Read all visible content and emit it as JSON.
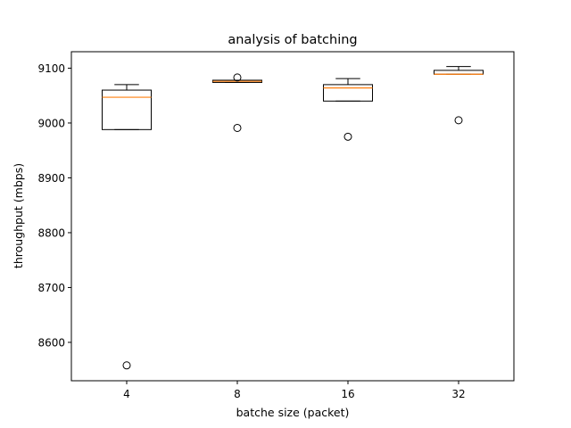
{
  "chart_data": {
    "type": "box",
    "title": "analysis of batching",
    "xlabel": "batche size (packet)",
    "ylabel": "throughput (mbps)",
    "categories": [
      "4",
      "8",
      "16",
      "32"
    ],
    "ylim": [
      8530,
      9130
    ],
    "yticks": [
      8600,
      8700,
      8800,
      8900,
      9000,
      9100
    ],
    "ytick_labels": [
      "8600",
      "8700",
      "8800",
      "8900",
      "9000",
      "9100"
    ],
    "grid": false,
    "boxes": [
      {
        "category": "4",
        "whisker_low": 8988,
        "q1": 8988,
        "median": 9047,
        "q3": 9060,
        "whisker_high": 9070,
        "outliers": [
          8558
        ]
      },
      {
        "category": "8",
        "whisker_low": 9074,
        "q1": 9074,
        "median": 9076,
        "q3": 9078,
        "whisker_high": 9078,
        "outliers": [
          9083,
          8991
        ]
      },
      {
        "category": "16",
        "whisker_low": 9040,
        "q1": 9040,
        "median": 9064,
        "q3": 9070,
        "whisker_high": 9081,
        "outliers": [
          8975
        ]
      },
      {
        "category": "32",
        "whisker_low": 9089,
        "q1": 9089,
        "median": 9089,
        "q3": 9096,
        "whisker_high": 9103,
        "outliers": [
          9005
        ]
      }
    ],
    "colors": {
      "box": "#000000",
      "median": "#ff7f0e",
      "outlier": "#000000",
      "axes": "#000000"
    }
  }
}
